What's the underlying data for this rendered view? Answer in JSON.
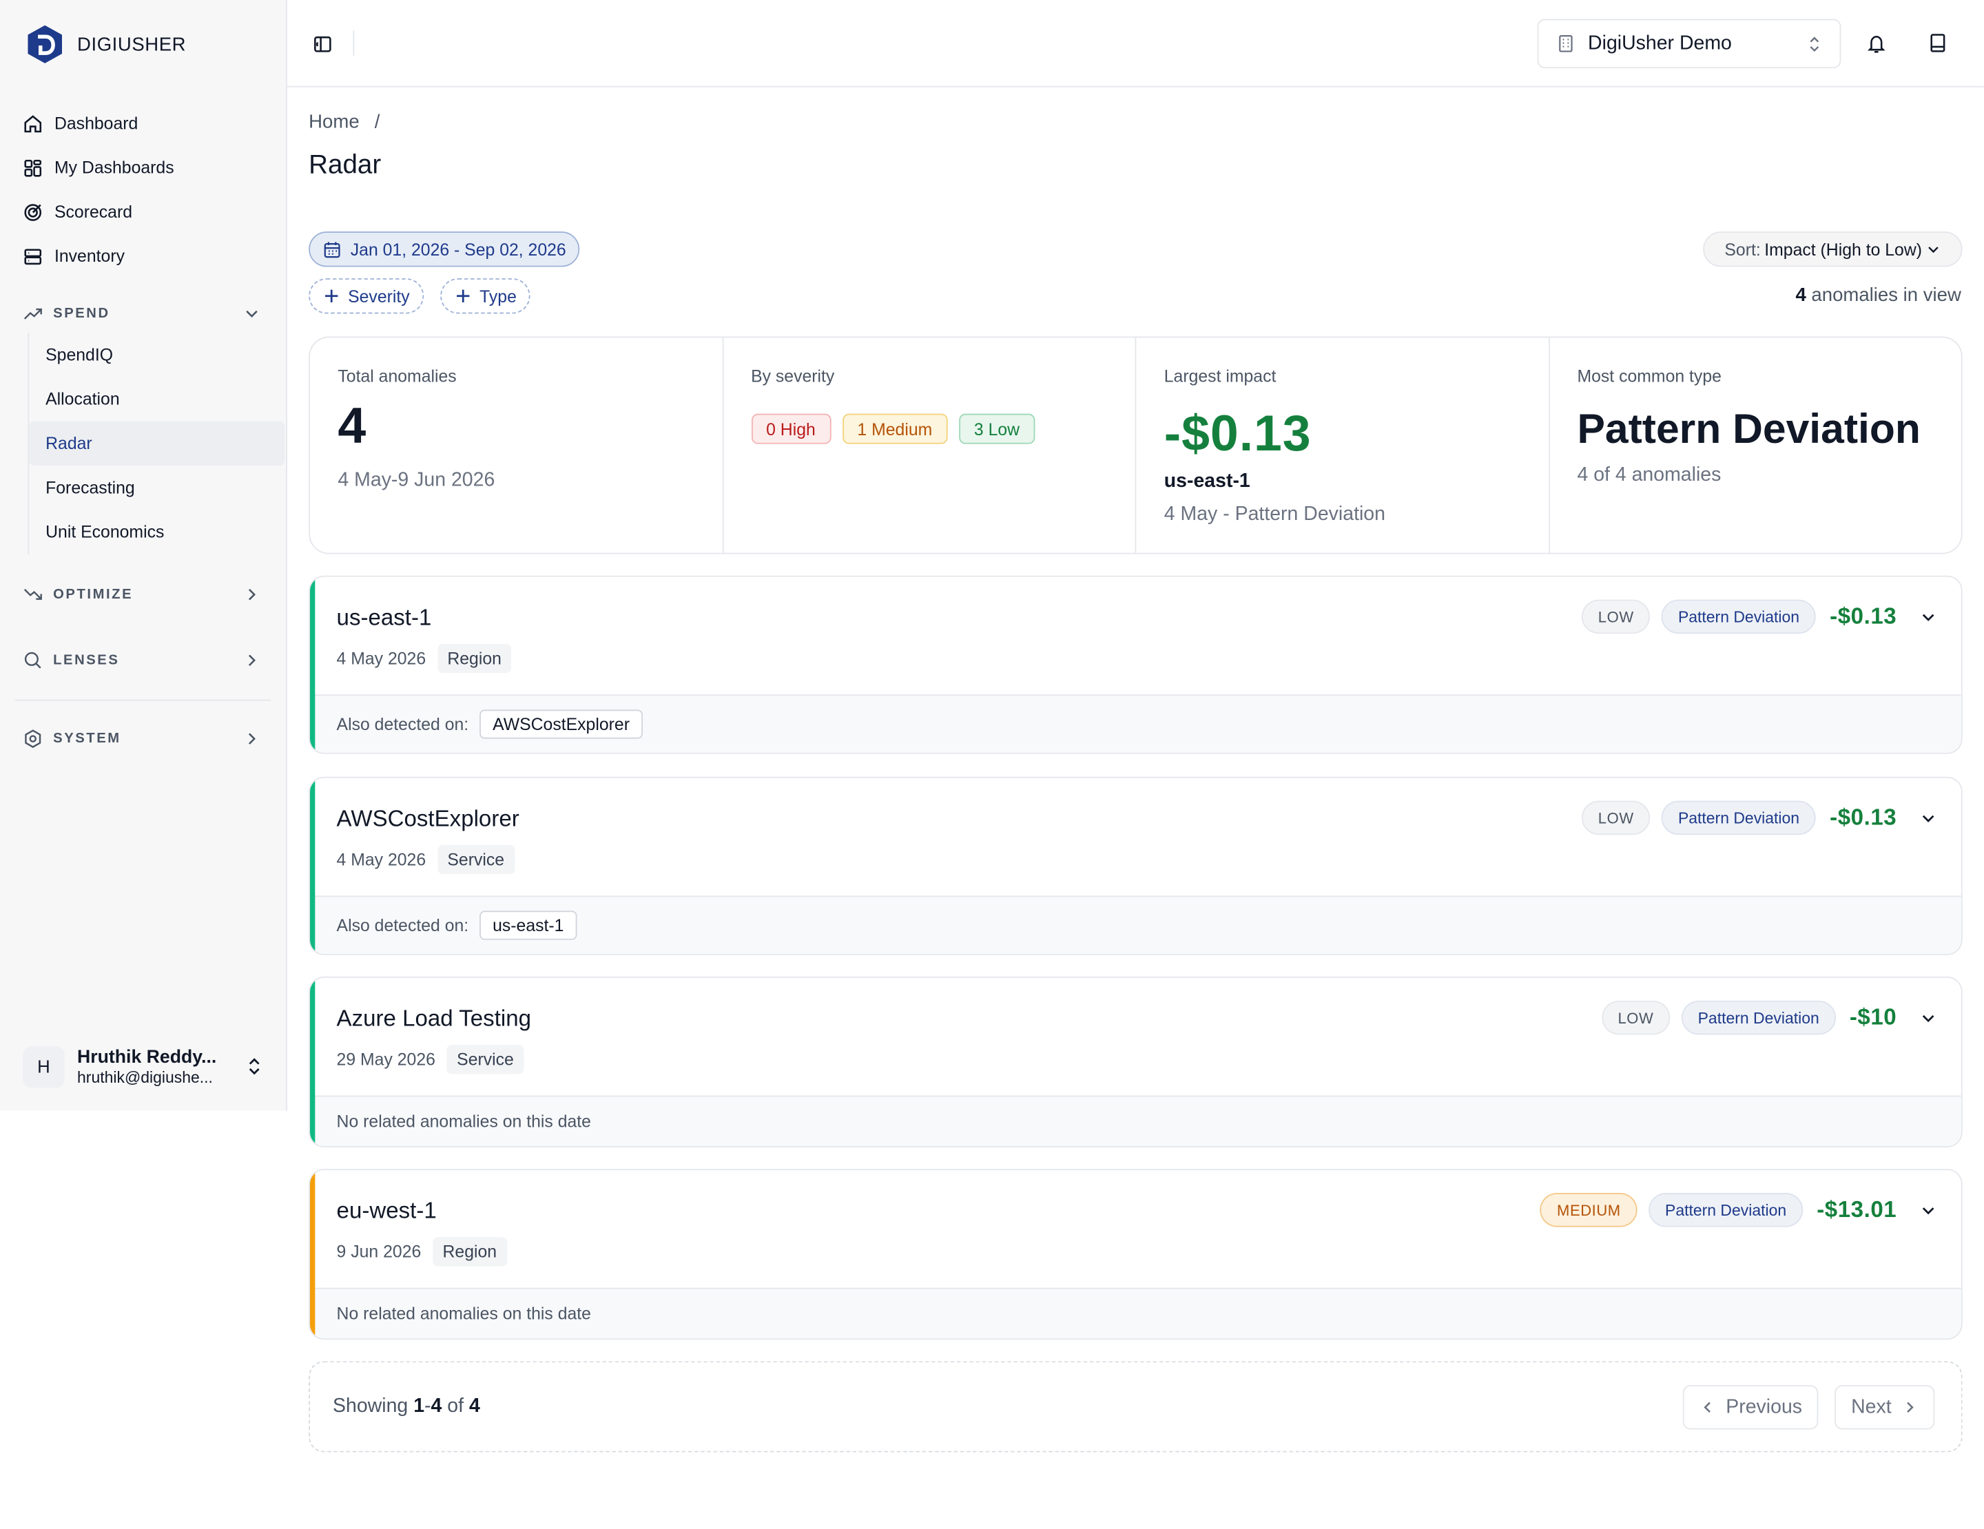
{
  "brand": {
    "name": "DIGIUSHER"
  },
  "nav": {
    "dashboard": "Dashboard",
    "my_dashboards": "My Dashboards",
    "scorecard": "Scorecard",
    "inventory": "Inventory"
  },
  "sections": {
    "spend": "SPEND",
    "optimize": "OPTIMIZE",
    "lenses": "LENSES",
    "system": "SYSTEM"
  },
  "spend_items": [
    "SpendIQ",
    "Allocation",
    "Radar",
    "Forecasting",
    "Unit Economics"
  ],
  "active_spend_item": "Radar",
  "user": {
    "initial": "H",
    "name": "Hruthik Reddy...",
    "email": "hruthik@digiushe..."
  },
  "header": {
    "org": "DigiUsher Demo"
  },
  "breadcrumb": {
    "home": "Home",
    "sep": "/"
  },
  "page": {
    "title": "Radar"
  },
  "filters": {
    "date_range": "Jan 01, 2026 - Sep 02, 2026",
    "severity": "Severity",
    "type": "Type"
  },
  "sort": {
    "label": "Sort:",
    "value": "Impact (High to Low)"
  },
  "in_view": {
    "count": "4",
    "text": "anomalies in view"
  },
  "summary": {
    "total_label": "Total anomalies",
    "total_value": "4",
    "total_range": "4 May-9 Jun 2026",
    "severity_label": "By severity",
    "high": "0 High",
    "medium": "1 Medium",
    "low": "3 Low",
    "impact_label": "Largest impact",
    "impact_value": "-$0.13",
    "impact_resource": "us-east-1",
    "impact_detail": "4 May - Pattern Deviation",
    "type_label": "Most common type",
    "type_value": "Pattern Deviation",
    "type_detail": "4 of 4 anomalies"
  },
  "anomalies": [
    {
      "name": "us-east-1",
      "date": "4 May 2026",
      "kind": "Region",
      "severity": "LOW",
      "type": "Pattern Deviation",
      "amount": "-$0.13",
      "foot_label": "Also detected on:",
      "foot_chip": "AWSCostExplorer",
      "accent": "#10b981"
    },
    {
      "name": "AWSCostExplorer",
      "date": "4 May 2026",
      "kind": "Service",
      "severity": "LOW",
      "type": "Pattern Deviation",
      "amount": "-$0.13",
      "foot_label": "Also detected on:",
      "foot_chip": "us-east-1",
      "accent": "#10b981"
    },
    {
      "name": "Azure Load Testing",
      "date": "29 May 2026",
      "kind": "Service",
      "severity": "LOW",
      "type": "Pattern Deviation",
      "amount": "-$10",
      "foot_label": "No related anomalies on this date",
      "foot_chip": "",
      "accent": "#10b981"
    },
    {
      "name": "eu-west-1",
      "date": "9 Jun 2026",
      "kind": "Region",
      "severity": "MEDIUM",
      "type": "Pattern Deviation",
      "amount": "-$13.01",
      "foot_label": "No related anomalies on this date",
      "foot_chip": "",
      "accent": "#f59e0b"
    }
  ],
  "pagination": {
    "showing": "Showing",
    "range_start": "1",
    "range_end": "4",
    "of": "of",
    "total": "4",
    "prev": "Previous",
    "next": "Next"
  }
}
